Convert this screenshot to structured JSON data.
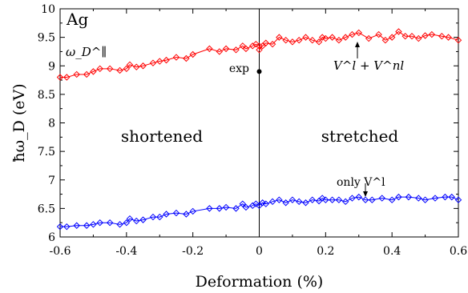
{
  "chart_data": {
    "type": "line",
    "xlabel": "Deformation (%)",
    "ylabel": "ħω_D (eV)",
    "xlim": [
      -0.6,
      0.6
    ],
    "ylim": [
      6,
      10
    ],
    "xticks": [
      "-0.6",
      "-0.4",
      "-0.2",
      "0",
      "0.2",
      "0.4",
      "0.6"
    ],
    "yticks": [
      "6",
      "6.5",
      "7",
      "7.5",
      "8",
      "8.5",
      "9",
      "9.5",
      "10"
    ],
    "grid": false,
    "colors": {
      "upper": "#ff0000",
      "lower": "#0000ff",
      "experiment": "#000000"
    },
    "annotations": {
      "element": "Ag",
      "omega_label": "ω_D^∥",
      "exp_label": "exp",
      "left_region": "shortened",
      "right_region": "stretched",
      "upper_curve_label": "V^l + V^nl",
      "lower_curve_label": "only V^l"
    },
    "experiment_point": {
      "x": 0,
      "y": 8.9
    },
    "series": [
      {
        "x": [
          -0.6,
          -0.58,
          -0.55,
          -0.52,
          -0.5,
          -0.48,
          -0.45,
          -0.42,
          -0.4,
          -0.39,
          -0.37,
          -0.35,
          -0.32,
          -0.3,
          -0.28,
          -0.25,
          -0.22,
          -0.2,
          -0.15,
          -0.12,
          -0.1,
          -0.07,
          -0.05,
          -0.04,
          -0.02,
          -0.01,
          0,
          0,
          0.01,
          0.02,
          0.04,
          0.06,
          0.08,
          0.1,
          0.12,
          0.14,
          0.16,
          0.18,
          0.19,
          0.2,
          0.22,
          0.24,
          0.26,
          0.28,
          0.3,
          0.33,
          0.36,
          0.38,
          0.4,
          0.42,
          0.44,
          0.46,
          0.48,
          0.5,
          0.52,
          0.55,
          0.57,
          0.6
        ],
        "y": [
          8.8,
          8.8,
          8.85,
          8.85,
          8.9,
          8.95,
          8.95,
          8.92,
          8.95,
          9.02,
          8.98,
          9.0,
          9.05,
          9.08,
          9.1,
          9.15,
          9.13,
          9.2,
          9.3,
          9.25,
          9.3,
          9.28,
          9.35,
          9.3,
          9.35,
          9.38,
          9.35,
          9.28,
          9.35,
          9.4,
          9.38,
          9.5,
          9.45,
          9.42,
          9.45,
          9.5,
          9.45,
          9.42,
          9.5,
          9.48,
          9.5,
          9.45,
          9.5,
          9.55,
          9.58,
          9.48,
          9.55,
          9.45,
          9.5,
          9.6,
          9.52,
          9.52,
          9.48,
          9.53,
          9.55,
          9.52,
          9.5,
          9.45
        ]
      },
      {
        "x": [
          -0.6,
          -0.58,
          -0.55,
          -0.52,
          -0.5,
          -0.48,
          -0.45,
          -0.42,
          -0.4,
          -0.39,
          -0.37,
          -0.35,
          -0.32,
          -0.3,
          -0.28,
          -0.25,
          -0.22,
          -0.2,
          -0.15,
          -0.12,
          -0.1,
          -0.07,
          -0.05,
          -0.04,
          -0.02,
          -0.01,
          0,
          0.01,
          0.02,
          0.04,
          0.06,
          0.08,
          0.1,
          0.12,
          0.14,
          0.16,
          0.18,
          0.19,
          0.2,
          0.22,
          0.24,
          0.26,
          0.28,
          0.3,
          0.32,
          0.34,
          0.37,
          0.4,
          0.42,
          0.45,
          0.48,
          0.5,
          0.53,
          0.56,
          0.58,
          0.6
        ],
        "y": [
          6.18,
          6.18,
          6.2,
          6.2,
          6.22,
          6.25,
          6.25,
          6.22,
          6.25,
          6.32,
          6.28,
          6.3,
          6.35,
          6.35,
          6.4,
          6.42,
          6.4,
          6.45,
          6.5,
          6.5,
          6.52,
          6.5,
          6.58,
          6.52,
          6.55,
          6.58,
          6.55,
          6.6,
          6.58,
          6.62,
          6.65,
          6.6,
          6.65,
          6.62,
          6.6,
          6.65,
          6.63,
          6.68,
          6.65,
          6.65,
          6.65,
          6.62,
          6.68,
          6.7,
          6.65,
          6.65,
          6.68,
          6.65,
          6.7,
          6.7,
          6.68,
          6.65,
          6.68,
          6.7,
          6.7,
          6.65
        ]
      }
    ]
  }
}
